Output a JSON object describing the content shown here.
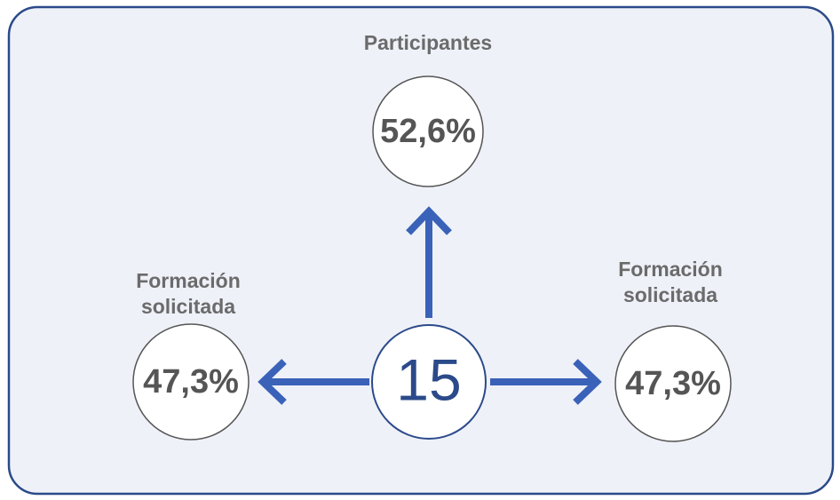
{
  "center": {
    "value": "15"
  },
  "nodes": [
    {
      "label": [
        "Participantes"
      ],
      "value": "52,6%"
    },
    {
      "label": [
        "Formación",
        "solicitada"
      ],
      "value": "47,3%"
    },
    {
      "label": [
        "Formación",
        "solicitada"
      ],
      "value": "47,3%"
    }
  ]
}
